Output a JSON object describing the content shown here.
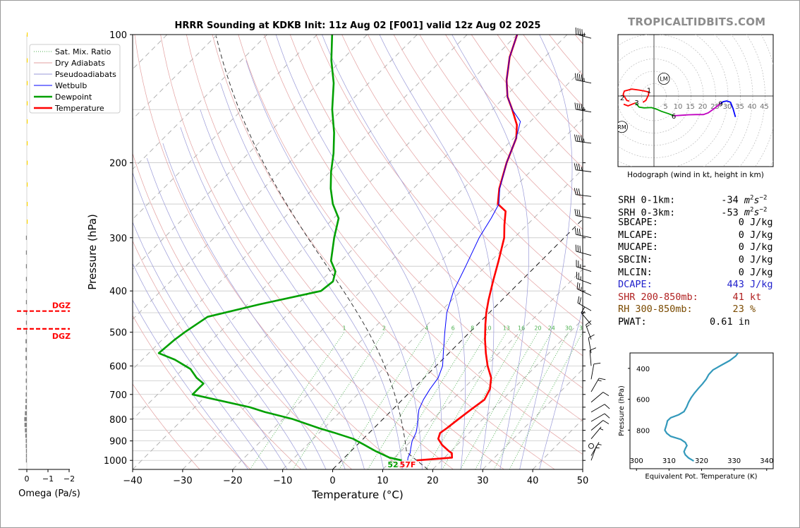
{
  "chart_data": [
    {
      "type": "line",
      "title": "HRRR Sounding at KDKB Init: 11z Aug 02 [F001] valid 12z Aug 02 2025",
      "xlabel": "Temperature (°C)",
      "ylabel": "Pressure (hPa)",
      "xlim": [
        -40,
        50
      ],
      "ylim": [
        1050,
        100
      ],
      "yscale": "log",
      "skew_degrees": 45,
      "xticks": [
        "−40",
        "−30",
        "−20",
        "−10",
        "0",
        "10",
        "20",
        "30",
        "40",
        "50"
      ],
      "yticks": [
        "100",
        "200",
        "300",
        "400",
        "500",
        "600",
        "700",
        "800",
        "900",
        "1000"
      ],
      "legend_position": "top-left",
      "legend": [
        "Sat. Mix. Ratio",
        "Dry Adiabats",
        "Pseudoadiabats",
        "Wetbulb",
        "Dewpoint",
        "Temperature"
      ],
      "mixing_ratio_labels": [
        "1",
        "2",
        "4",
        "6",
        "8",
        "10",
        "13",
        "16",
        "20",
        "24",
        "30",
        "36"
      ],
      "surface_labels": {
        "dewpoint": "52",
        "temperature": "57F"
      },
      "series": [
        {
          "name": "Temperature",
          "color": "#ff0000",
          "p": [
            1000,
            985,
            962,
            950,
            920,
            890,
            862,
            840,
            800,
            760,
            720,
            680,
            640,
            600,
            560,
            520,
            480,
            450,
            420,
            380,
            340,
            300,
            280,
            260,
            250,
            230,
            200,
            175,
            163,
            150,
            140,
            128,
            113,
            100
          ],
          "t": [
            15,
            21.5,
            20.6,
            19.5,
            17,
            15,
            14.2,
            14.6,
            15.1,
            15.7,
            16.4,
            15.4,
            13.4,
            10.3,
            7.4,
            4.5,
            1.6,
            -0.6,
            -2.7,
            -5.5,
            -8.5,
            -12,
            -14.5,
            -17,
            -20,
            -22.8,
            -26.5,
            -29.5,
            -32,
            -36,
            -39.5,
            -43,
            -47,
            -50
          ]
        },
        {
          "name": "Dewpoint",
          "color": "#00a000",
          "p": [
            1000,
            985,
            970,
            950,
            920,
            890,
            860,
            840,
            800,
            770,
            750,
            700,
            680,
            660,
            640,
            610,
            580,
            560,
            520,
            500,
            460,
            430,
            400,
            380,
            360,
            340,
            300,
            270,
            250,
            230,
            210,
            190,
            170,
            150,
            130,
            115,
            100
          ],
          "t": [
            12,
            9,
            7.2,
            4.8,
            1.5,
            -2,
            -7.2,
            -11,
            -18,
            -25,
            -29,
            -43,
            -43,
            -43,
            -45.5,
            -48.5,
            -53.5,
            -58,
            -57.5,
            -57,
            -55.5,
            -47.6,
            -38,
            -37.5,
            -39,
            -42,
            -46,
            -49,
            -53,
            -56.5,
            -59.8,
            -63,
            -67,
            -72,
            -77,
            -82,
            -87
          ]
        },
        {
          "name": "Wetbulb",
          "color": "#0000ff",
          "p": [
            1000,
            985,
            960,
            940,
            900,
            860,
            840,
            800,
            760,
            720,
            680,
            640,
            600,
            560,
            500,
            450,
            400,
            350,
            300,
            270,
            250,
            230,
            200,
            175,
            160,
            150,
            140,
            128,
            113,
            100
          ],
          "t": [
            13.2,
            12.7,
            12.2,
            11.5,
            10.2,
            9.3,
            8.6,
            7,
            5.3,
            4.2,
            3.4,
            2.8,
            1.3,
            -1.1,
            -5,
            -8.5,
            -11.5,
            -14,
            -17,
            -18.5,
            -19.8,
            -22.7,
            -26.5,
            -29.5,
            -32,
            -36,
            -39.5,
            -43,
            -47,
            -50
          ]
        }
      ]
    },
    {
      "type": "bar",
      "xlabel": "Omega (Pa/s)",
      "xticks": [
        "0",
        "−1",
        "−2"
      ],
      "annotations": [
        "DGZ",
        "DGZ"
      ],
      "dgz_pressure": [
        446,
        491
      ],
      "p": [
        100,
        115,
        130,
        145,
        160,
        180,
        200,
        225,
        250,
        275,
        300,
        325,
        350,
        375,
        400,
        425,
        450,
        475,
        500,
        525,
        550,
        575,
        600,
        625,
        650,
        675,
        700,
        725,
        750,
        775,
        800,
        825,
        850,
        875,
        900,
        925,
        950,
        975,
        1000
      ],
      "omega": [
        -0.03,
        -0.04,
        -0.04,
        -0.04,
        -0.04,
        -0.04,
        -0.04,
        -0.03,
        -0.02,
        -0.01,
        0,
        0.005,
        0.01,
        0.02,
        0.02,
        0.03,
        0.03,
        0.03,
        0.04,
        0.06,
        0.06,
        0.06,
        0.05,
        0.04,
        0.05,
        0.04,
        0.05,
        0.06,
        0.07,
        0.09,
        0.12,
        0.11,
        0.09,
        0.07,
        0.05,
        0.05,
        0.03,
        0.02,
        0.02
      ]
    },
    {
      "type": "line",
      "xlabel": "",
      "caption": "Hodograph (wind in kt, height in km)",
      "ring_labels": [
        "5",
        "10",
        "15",
        "20",
        "25",
        "30",
        "35",
        "40",
        "45"
      ],
      "points": [
        {
          "km": "0",
          "u": -4.5,
          "v": -2.5,
          "color": "#ff0000"
        },
        {
          "km": "1",
          "u": -2,
          "v": 2.5,
          "color": "#ff0000"
        },
        {
          "km": "2",
          "u": -12,
          "v": -0.5,
          "color": "#ff0000"
        },
        {
          "km": "3",
          "u": -7,
          "v": -2.5,
          "color": "#00a000"
        },
        {
          "km": "6",
          "u": 8,
          "v": -8,
          "color": "#c000c0"
        },
        {
          "km": "9",
          "u": 27,
          "v": -3,
          "color": "#0000ff"
        },
        {
          "km": "12",
          "u": 33,
          "v": -8.5,
          "color": "#0000ff"
        }
      ],
      "segments": [
        {
          "color": "#ff0000",
          "u": [
            -4.5,
            -3.3,
            -2.3,
            -2,
            -3.8,
            -6,
            -9,
            -12,
            -12.5,
            -11.5,
            -11,
            -10
          ],
          "v": [
            -2.5,
            -1.8,
            0.3,
            1.6,
            2,
            2.4,
            2.8,
            2,
            0.6,
            -1,
            -1.8,
            -2.1
          ]
        },
        {
          "color": "#ff0000",
          "u": [
            -12.3,
            -10.5,
            -8.8,
            -7.5
          ],
          "v": [
            -3.3,
            -4,
            -3.3,
            -2.8
          ]
        },
        {
          "color": "#00a000",
          "u": [
            -7.5,
            -6,
            -4,
            -1,
            1,
            3,
            6,
            8
          ],
          "v": [
            -2.8,
            -4.5,
            -4.8,
            -4.7,
            -5.3,
            -6.2,
            -7.2,
            -8
          ]
        },
        {
          "color": "#c000c0",
          "u": [
            8,
            11,
            14,
            17,
            20,
            22,
            24.5,
            27
          ],
          "v": [
            -8,
            -7.8,
            -7.6,
            -7.5,
            -7.5,
            -6.8,
            -5,
            -3
          ]
        },
        {
          "color": "#0000ff",
          "u": [
            27,
            28,
            29.5,
            31,
            32,
            33
          ],
          "v": [
            -3,
            -2.3,
            -2,
            -2.5,
            -5,
            -8.5
          ]
        }
      ],
      "markers": [
        {
          "label": "LM",
          "u": 4,
          "v": 7
        },
        {
          "label": "RM",
          "u": -13,
          "v": -12.5
        }
      ]
    },
    {
      "type": "line",
      "xlabel": "Equivalent Pot. Temperature (K)",
      "ylabel": "Pressure (hPa)",
      "xlim": [
        298,
        342
      ],
      "ylim": [
        1050,
        300
      ],
      "xticks": [
        "300",
        "310",
        "320",
        "330",
        "340"
      ],
      "yticks": [
        "400",
        "600",
        "800"
      ],
      "series": [
        {
          "name": "",
          "color": "#3399bb",
          "p": [
            300,
            320,
            350,
            380,
            410,
            440,
            470,
            500,
            530,
            560,
            590,
            620,
            650,
            680,
            700,
            720,
            740,
            760,
            780,
            800,
            820,
            840,
            860,
            880,
            900,
            920,
            940,
            960,
            980,
            1000
          ],
          "theta_e": [
            331.2,
            330.5,
            328.6,
            326,
            323.5,
            322.2,
            321.4,
            320.3,
            319,
            317.8,
            316.8,
            316,
            315.4,
            314.6,
            313,
            310.5,
            309.5,
            309.3,
            309,
            308.7,
            309.3,
            310.5,
            313.6,
            315,
            315.5,
            315,
            314.6,
            315,
            316,
            317.6
          ]
        }
      ]
    }
  ],
  "indices": [
    {
      "label": "SRH 0-1km:",
      "value": "-34",
      "unit": "m2s-2",
      "color": "#000000"
    },
    {
      "label": "SRH 0-3km:",
      "value": "-53",
      "unit": "m2s-2",
      "color": "#000000"
    },
    {
      "label": "SBCAPE:",
      "value": "0",
      "unit": "J/kg",
      "color": "#000000"
    },
    {
      "label": "MLCAPE:",
      "value": "0",
      "unit": "J/kg",
      "color": "#000000"
    },
    {
      "label": "MUCAPE:",
      "value": "0",
      "unit": "J/kg",
      "color": "#000000"
    },
    {
      "label": "SBCIN:",
      "value": "0",
      "unit": "J/kg",
      "color": "#000000"
    },
    {
      "label": "MLCIN:",
      "value": "0",
      "unit": "J/kg",
      "color": "#000000"
    },
    {
      "label": "DCAPE:",
      "value": "443",
      "unit": "J/kg",
      "color": "#2020cc"
    },
    {
      "label": "SHR 200-850mb:",
      "value": "41",
      "unit": "kt",
      "color": "#b02020"
    },
    {
      "label": "RH 300-850mb:",
      "value": "23",
      "unit": "%",
      "color": "#7a4a00"
    },
    {
      "label": "PWAT:",
      "value": "0.61",
      "unit": "in",
      "color": "#000000"
    }
  ],
  "brand": "TROPICALTIDBITS.COM",
  "wind_profile": [
    {
      "p": 102,
      "spd": 45,
      "dir": 285
    },
    {
      "p": 130,
      "spd": 45,
      "dir": 282
    },
    {
      "p": 152,
      "spd": 45,
      "dir": 280
    },
    {
      "p": 180,
      "spd": 45,
      "dir": 278
    },
    {
      "p": 210,
      "spd": 35,
      "dir": 277
    },
    {
      "p": 240,
      "spd": 30,
      "dir": 277
    },
    {
      "p": 270,
      "spd": 30,
      "dir": 280
    },
    {
      "p": 300,
      "spd": 30,
      "dir": 282
    },
    {
      "p": 330,
      "spd": 30,
      "dir": 285
    },
    {
      "p": 360,
      "spd": 25,
      "dir": 288
    },
    {
      "p": 385,
      "spd": 25,
      "dir": 290
    },
    {
      "p": 410,
      "spd": 25,
      "dir": 295
    },
    {
      "p": 445,
      "spd": 20,
      "dir": 300
    },
    {
      "p": 480,
      "spd": 15,
      "dir": 320
    },
    {
      "p": 520,
      "spd": 15,
      "dir": 340
    },
    {
      "p": 560,
      "spd": 10,
      "dir": 350
    },
    {
      "p": 600,
      "spd": 10,
      "dir": 355
    },
    {
      "p": 645,
      "spd": 10,
      "dir": 10
    },
    {
      "p": 690,
      "spd": 15,
      "dir": 30
    },
    {
      "p": 730,
      "spd": 10,
      "dir": 50
    },
    {
      "p": 770,
      "spd": 10,
      "dir": 60
    },
    {
      "p": 810,
      "spd": 10,
      "dir": 60
    },
    {
      "p": 850,
      "spd": 10,
      "dir": 50
    },
    {
      "p": 890,
      "spd": 5,
      "dir": 40
    },
    {
      "p": 925,
      "spd": 0,
      "dir": 0
    },
    {
      "p": 975,
      "spd": 5,
      "dir": 30
    },
    {
      "p": 1000,
      "spd": 5,
      "dir": 20
    }
  ],
  "colors": {
    "temperature": "#ff0000",
    "dewpoint": "#00a000",
    "wetbulb": "#0000ff",
    "dgz": "#ff0000",
    "omega_up": "#ffd700",
    "omega_down": "#808080",
    "grid": "#c8c8c8"
  }
}
